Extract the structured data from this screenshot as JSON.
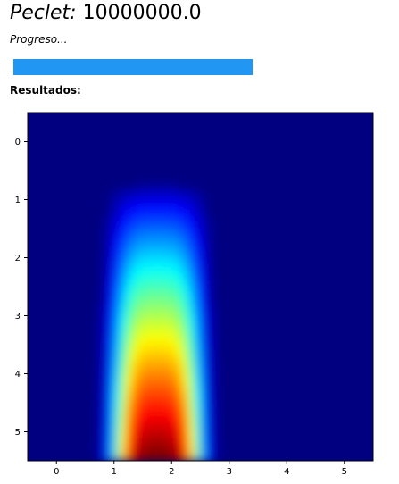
{
  "peclet": {
    "label": "Peclet:",
    "value": "10000000.0"
  },
  "progress": {
    "label": "Progreso...",
    "fraction": 1.0
  },
  "results": {
    "label": "Resultados:"
  },
  "chart_data": {
    "type": "heatmap",
    "colormap": "jet",
    "x_ticks": [
      "0",
      "1",
      "2",
      "3",
      "4",
      "5"
    ],
    "y_ticks": [
      "0",
      "1",
      "2",
      "3",
      "4",
      "5"
    ],
    "xlim": [
      -0.5,
      5.5
    ],
    "ylim": [
      5.5,
      -0.5
    ],
    "y_inverted": true,
    "grid": false,
    "colorbar": false
  }
}
